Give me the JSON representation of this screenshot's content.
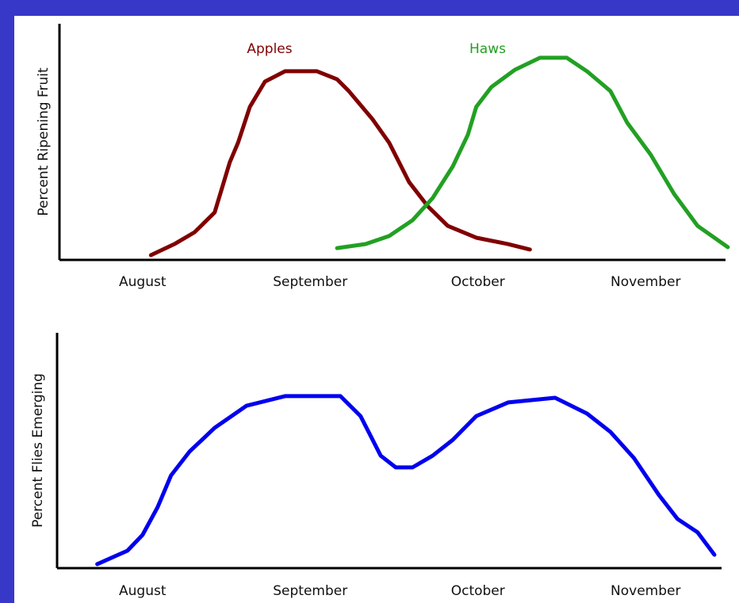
{
  "chart_data": [
    {
      "type": "line",
      "ylabel": "Percent Ripening Fruit",
      "xlim": [
        -0.5,
        3.5
      ],
      "ylim": [
        0,
        100
      ],
      "xticks": [
        {
          "value": 0,
          "label": "August"
        },
        {
          "value": 1,
          "label": "September"
        },
        {
          "value": 2,
          "label": "October"
        },
        {
          "value": 3,
          "label": "November"
        }
      ],
      "series": [
        {
          "name": "Apples",
          "color": "#800000",
          "x": [
            0.05,
            0.19,
            0.31,
            0.43,
            0.47,
            0.52,
            0.57,
            0.64,
            0.73,
            0.85,
            1.04,
            1.16,
            1.23,
            1.37,
            1.47,
            1.59,
            1.7,
            1.82,
            1.99,
            2.18,
            2.31
          ],
          "values": [
            2.0,
            6.7,
            11.7,
            20.1,
            29.5,
            41.3,
            49.7,
            64.8,
            75.5,
            79.9,
            79.9,
            76.5,
            71.5,
            59.7,
            49.7,
            32.9,
            22.8,
            14.4,
            9.4,
            6.7,
            4.4
          ]
        },
        {
          "name": "Haws",
          "color": "#22a022",
          "x": [
            1.16,
            1.33,
            1.47,
            1.61,
            1.73,
            1.85,
            1.94,
            1.99,
            2.08,
            2.22,
            2.37,
            2.53,
            2.65,
            2.79,
            2.89,
            3.03,
            3.17,
            3.31,
            3.49
          ],
          "values": [
            5.0,
            6.7,
            10.1,
            16.8,
            26.2,
            39.6,
            53.0,
            64.8,
            73.2,
            80.5,
            85.6,
            85.6,
            79.9,
            71.5,
            58.1,
            44.6,
            27.9,
            14.4,
            5.4
          ]
        }
      ]
    },
    {
      "type": "line",
      "ylabel": "Percent Flies Emerging",
      "xlim": [
        -0.5,
        3.5
      ],
      "ylim": [
        0,
        100
      ],
      "xticks": [
        {
          "value": 0,
          "label": "August"
        },
        {
          "value": 1,
          "label": "September"
        },
        {
          "value": 2,
          "label": "October"
        },
        {
          "value": 3,
          "label": "November"
        }
      ],
      "series": [
        {
          "color": "#0000ee",
          "x": [
            -0.27,
            -0.09,
            0,
            0.09,
            0.17,
            0.28,
            0.43,
            0.62,
            0.85,
            1.18,
            1.3,
            1.42,
            1.51,
            1.61,
            1.73,
            1.85,
            1.99,
            2.18,
            2.46,
            2.65,
            2.79,
            2.93,
            3.08,
            3.19,
            3.31,
            3.41
          ],
          "values": [
            1.7,
            7.4,
            14.1,
            25.9,
            39.4,
            49.5,
            59.6,
            69.0,
            73.1,
            73.1,
            64.6,
            47.8,
            42.8,
            42.8,
            47.8,
            54.5,
            64.6,
            70.4,
            72.4,
            65.7,
            57.9,
            46.8,
            31.0,
            20.9,
            15.2,
            5.7
          ]
        }
      ]
    }
  ]
}
